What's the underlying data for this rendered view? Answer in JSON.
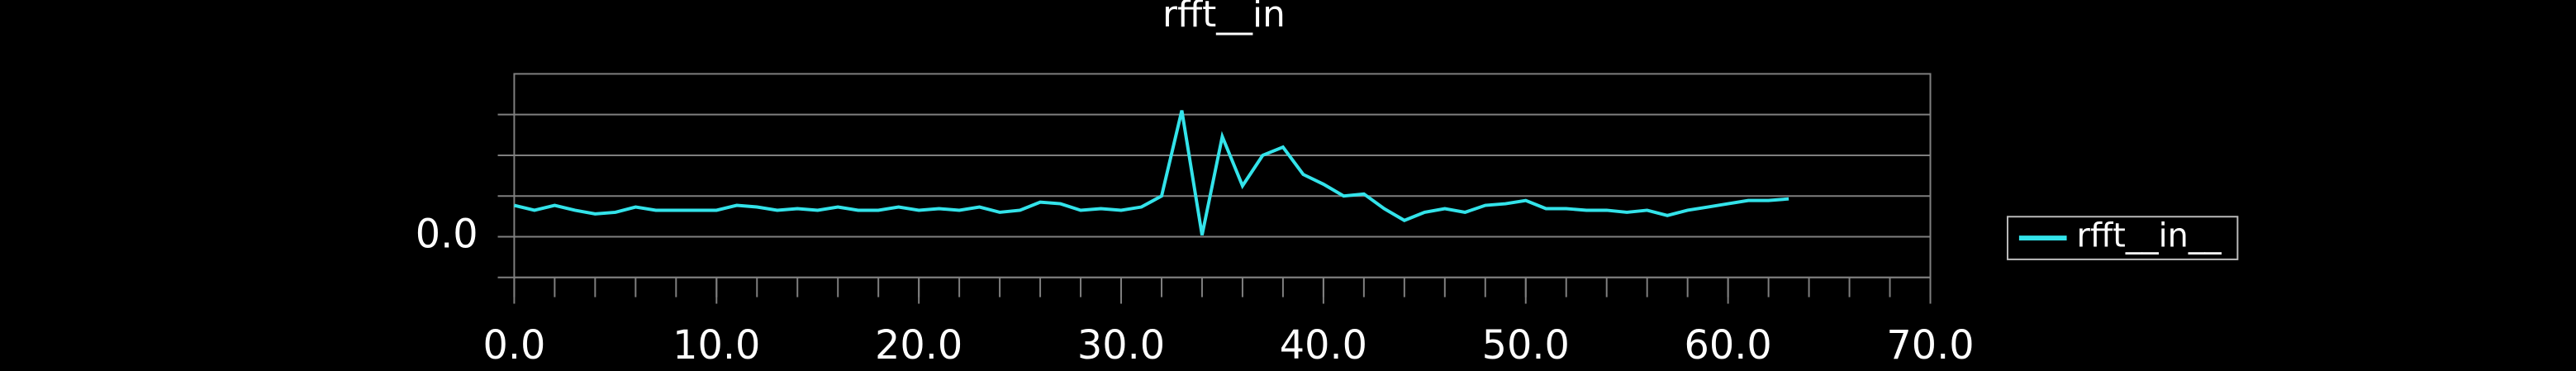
{
  "chart_data": {
    "type": "line",
    "title": "rfft__in",
    "x": [
      0,
      1,
      2,
      3,
      4,
      5,
      6,
      7,
      8,
      9,
      10,
      11,
      12,
      13,
      14,
      15,
      16,
      17,
      18,
      19,
      20,
      21,
      22,
      23,
      24,
      25,
      26,
      27,
      28,
      29,
      30,
      31,
      32,
      33,
      34,
      35,
      36,
      37,
      38,
      39,
      40,
      41,
      42,
      43,
      44,
      45,
      46,
      47,
      48,
      49,
      50,
      51,
      52,
      53,
      54,
      55,
      56,
      57,
      58,
      59,
      60,
      61,
      62,
      63
    ],
    "series": [
      {
        "name": "rfft__in__",
        "color": "#33e3ea",
        "values": [
          0.77,
          0.65,
          0.77,
          0.65,
          0.56,
          0.6,
          0.73,
          0.65,
          0.65,
          0.65,
          0.65,
          0.77,
          0.73,
          0.65,
          0.69,
          0.65,
          0.73,
          0.65,
          0.65,
          0.73,
          0.65,
          0.69,
          0.65,
          0.73,
          0.6,
          0.65,
          0.85,
          0.81,
          0.65,
          0.69,
          0.65,
          0.73,
          1.0,
          3.1,
          0.04,
          2.46,
          1.25,
          2.0,
          2.2,
          1.53,
          1.29,
          1.0,
          1.05,
          0.69,
          0.4,
          0.6,
          0.69,
          0.6,
          0.77,
          0.81,
          0.89,
          0.69,
          0.69,
          0.65,
          0.65,
          0.6,
          0.65,
          0.52,
          0.65,
          0.73,
          0.81,
          0.89,
          0.89,
          0.93
        ]
      }
    ],
    "xlim": [
      0,
      70
    ],
    "xticks": [
      {
        "value": 0,
        "label": "0.0"
      },
      {
        "value": 10,
        "label": "10.0"
      },
      {
        "value": 20,
        "label": "20.0"
      },
      {
        "value": 30,
        "label": "30.0"
      },
      {
        "value": 40,
        "label": "40.0"
      },
      {
        "value": 50,
        "label": "50.0"
      },
      {
        "value": 60,
        "label": "60.0"
      },
      {
        "value": 70,
        "label": "70.0"
      }
    ],
    "xminor_step": 2,
    "ylim": [
      -1,
      4
    ],
    "yticks": [
      {
        "value": 0,
        "label": "0.0"
      }
    ],
    "ygrid": [
      -1,
      1,
      2,
      3
    ],
    "grid": true,
    "legend": "right"
  }
}
